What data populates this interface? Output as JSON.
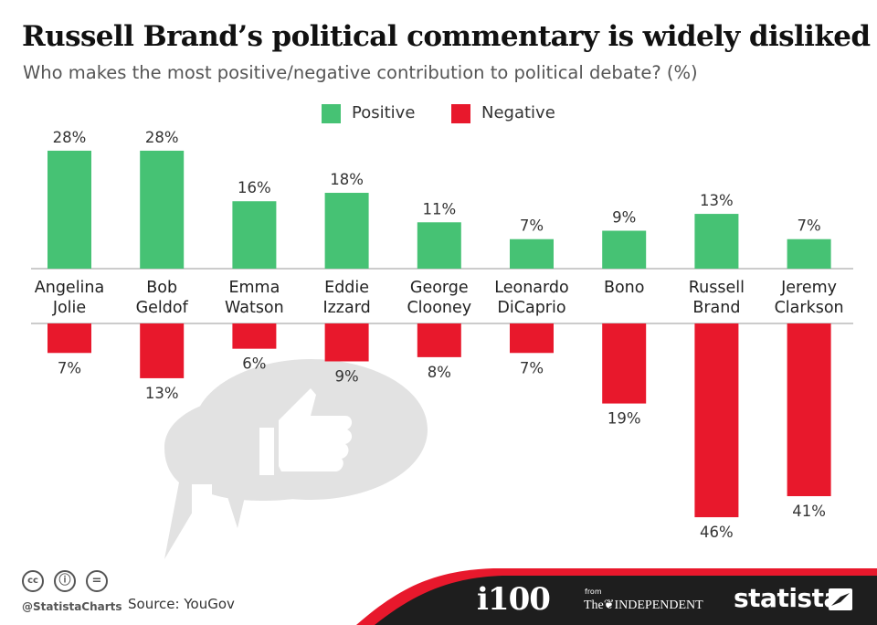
{
  "header": {
    "title": "Russell Brand’s political commentary is widely disliked",
    "subtitle": "Who makes the most positive/negative contribution to political debate? (%)"
  },
  "legend": {
    "positive_label": "Positive",
    "negative_label": "Negative"
  },
  "colors": {
    "positive": "#46c274",
    "negative": "#e8182c",
    "axis": "#bbbbbb",
    "illustration": "#e2e2e2",
    "footer_band": "#1e1e1e",
    "footer_red": "#e8182c"
  },
  "chart_data": {
    "type": "bar",
    "categories": [
      [
        "Angelina",
        "Jolie"
      ],
      [
        "Bob",
        "Geldof"
      ],
      [
        "Emma",
        "Watson"
      ],
      [
        "Eddie",
        "Izzard"
      ],
      [
        "George",
        "Clooney"
      ],
      [
        "Leonardo",
        "DiCaprio"
      ],
      [
        "Bono"
      ],
      [
        "Russell",
        "Brand"
      ],
      [
        "Jeremy",
        "Clarkson"
      ]
    ],
    "series": [
      {
        "name": "Positive",
        "values": [
          28,
          28,
          16,
          18,
          11,
          7,
          9,
          13,
          7
        ],
        "labels": [
          "28%",
          "28%",
          "16%",
          "18%",
          "11%",
          "7%",
          "9%",
          "13%",
          "7%"
        ]
      },
      {
        "name": "Negative",
        "values": [
          7,
          13,
          6,
          9,
          8,
          7,
          19,
          46,
          41
        ],
        "labels": [
          "7%",
          "13%",
          "6%",
          "9%",
          "8%",
          "7%",
          "19%",
          "46%",
          "41%"
        ]
      }
    ],
    "unit": "%",
    "legend_position": "top-center",
    "grid": false
  },
  "footer": {
    "credit": "@StatistaCharts",
    "source": "Source: YouGov",
    "i100": "i100",
    "from": "from",
    "independent": "The❦INDEPENDENT",
    "statista": "statista",
    "icons": [
      "cc-icon",
      "attribution-icon",
      "no-derivatives-icon"
    ],
    "cc_glyphs": [
      "cc",
      "ⓘ",
      "="
    ]
  }
}
